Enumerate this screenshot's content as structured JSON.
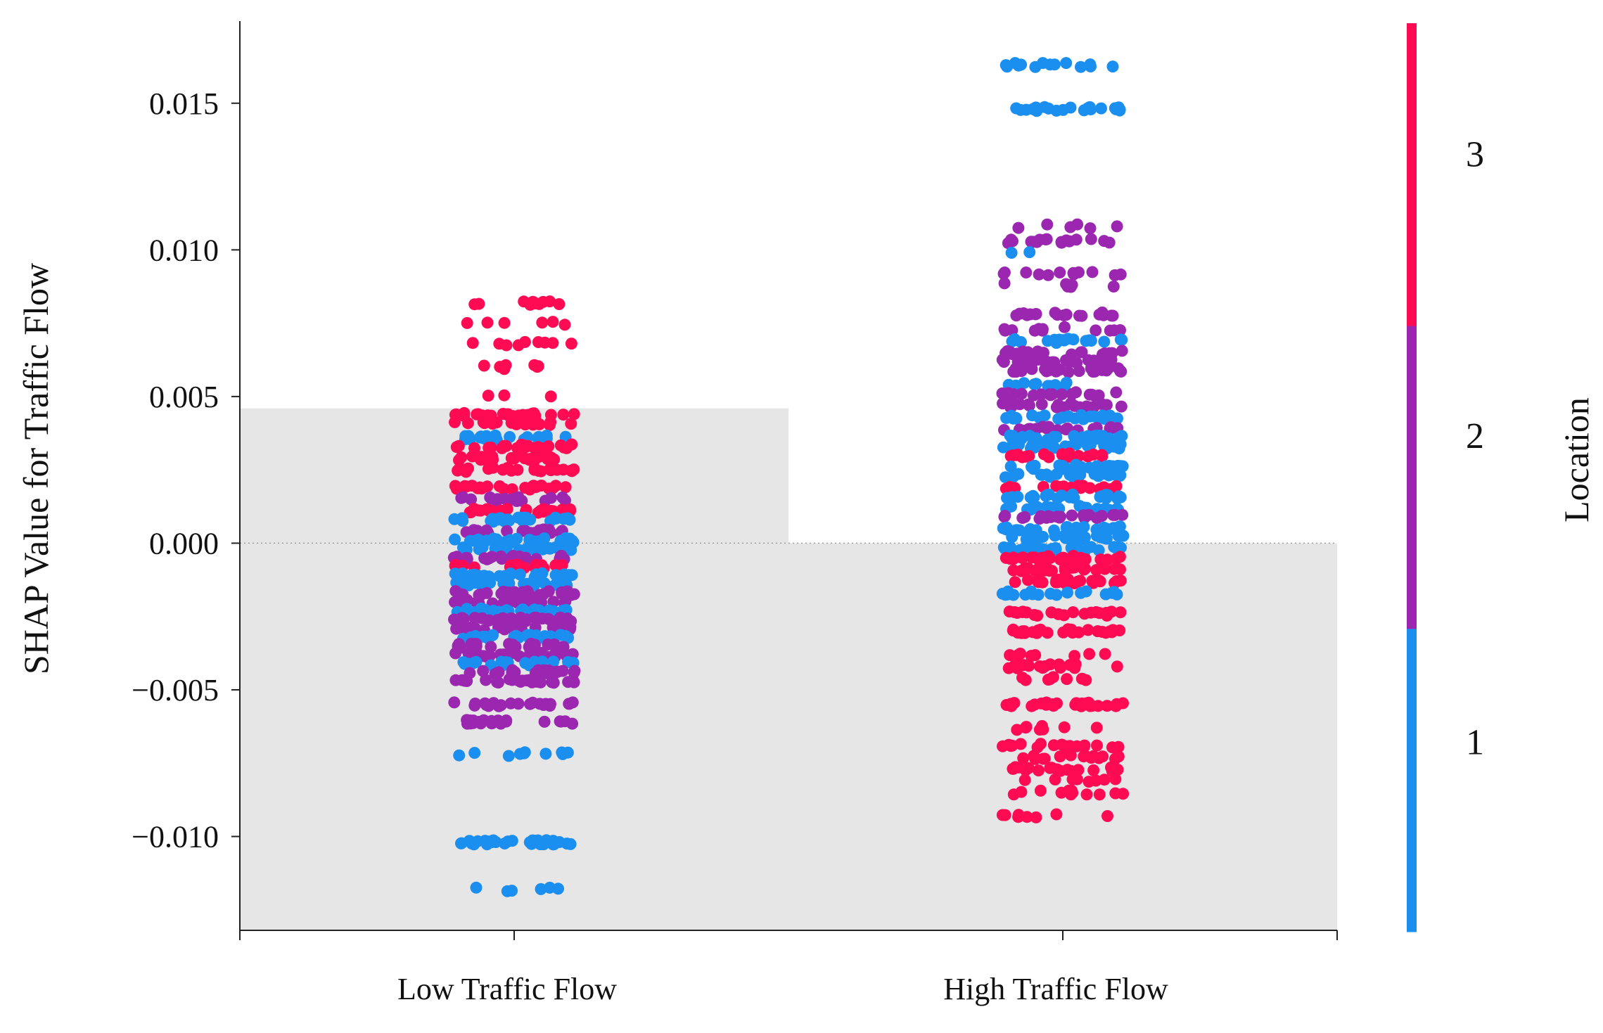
{
  "chart_data": {
    "type": "scatter",
    "subtype": "shap-dependence-strip",
    "title": "",
    "xlabel": "",
    "ylabel": "SHAP Value for Traffic Flow",
    "categories": [
      "Low Traffic Flow",
      "High Traffic Flow"
    ],
    "ylim": [
      -0.0132,
      0.0178
    ],
    "yticks": [
      0.015,
      0.01,
      0.005,
      0.0,
      -0.005,
      -0.01
    ],
    "ytick_labels": [
      "0.015",
      "0.010",
      "0.005",
      "0.000",
      "−0.005",
      "−0.010"
    ],
    "background_bars": [
      {
        "category": "Low Traffic Flow",
        "value": 0.0046
      },
      {
        "category": "High Traffic Flow",
        "value": 0.0
      }
    ],
    "zero_line": true,
    "grid": false,
    "colorbar": {
      "label": "Location",
      "tick_labels": [
        "3",
        "2",
        "1"
      ],
      "classes": [
        {
          "value": 3,
          "color": "#ff0b54"
        },
        {
          "value": 2,
          "color": "#9b27b0"
        },
        {
          "value": 1,
          "color": "#1b8ff0"
        }
      ]
    },
    "series": [
      {
        "category": "Low Traffic Flow",
        "bands": [
          {
            "y": 0.0082,
            "location": 3,
            "count": 10
          },
          {
            "y": 0.0075,
            "location": 3,
            "count": 6
          },
          {
            "y": 0.0068,
            "location": 3,
            "count": 9
          },
          {
            "y": 0.006,
            "location": 3,
            "count": 7
          },
          {
            "y": 0.005,
            "location": 3,
            "count": 3
          },
          {
            "y": 0.0044,
            "location": 3,
            "count": 22
          },
          {
            "y": 0.0041,
            "location": 3,
            "count": 20
          },
          {
            "y": 0.0036,
            "location": 1,
            "count": 22
          },
          {
            "y": 0.0033,
            "location": 3,
            "count": 24
          },
          {
            "y": 0.0029,
            "location": 3,
            "count": 26
          },
          {
            "y": 0.0025,
            "location": 3,
            "count": 22
          },
          {
            "y": 0.0019,
            "location": 3,
            "count": 24
          },
          {
            "y": 0.0015,
            "location": 2,
            "count": 18
          },
          {
            "y": 0.0011,
            "location": 3,
            "count": 26
          },
          {
            "y": 0.0008,
            "location": 1,
            "count": 26
          },
          {
            "y": 0.0004,
            "location": 2,
            "count": 22
          },
          {
            "y": 0.0001,
            "location": 1,
            "count": 30
          },
          {
            "y": -0.0002,
            "location": 1,
            "count": 28
          },
          {
            "y": -0.0005,
            "location": 2,
            "count": 26
          },
          {
            "y": -0.0008,
            "location": 3,
            "count": 20
          },
          {
            "y": -0.0011,
            "location": 1,
            "count": 26
          },
          {
            "y": -0.0014,
            "location": 1,
            "count": 26
          },
          {
            "y": -0.0017,
            "location": 2,
            "count": 28
          },
          {
            "y": -0.002,
            "location": 2,
            "count": 28
          },
          {
            "y": -0.0023,
            "location": 1,
            "count": 26
          },
          {
            "y": -0.0026,
            "location": 2,
            "count": 28
          },
          {
            "y": -0.0029,
            "location": 2,
            "count": 28
          },
          {
            "y": -0.0032,
            "location": 1,
            "count": 24
          },
          {
            "y": -0.0035,
            "location": 2,
            "count": 26
          },
          {
            "y": -0.0038,
            "location": 2,
            "count": 26
          },
          {
            "y": -0.0041,
            "location": 1,
            "count": 24
          },
          {
            "y": -0.0044,
            "location": 2,
            "count": 26
          },
          {
            "y": -0.0047,
            "location": 2,
            "count": 24
          },
          {
            "y": -0.0055,
            "location": 2,
            "count": 24
          },
          {
            "y": -0.0061,
            "location": 2,
            "count": 22
          },
          {
            "y": -0.0072,
            "location": 1,
            "count": 10
          },
          {
            "y": -0.0102,
            "location": 1,
            "count": 34
          },
          {
            "y": -0.0118,
            "location": 1,
            "count": 6
          }
        ]
      },
      {
        "category": "High Traffic Flow",
        "bands": [
          {
            "y": 0.0163,
            "location": 1,
            "count": 14
          },
          {
            "y": 0.0148,
            "location": 1,
            "count": 22
          },
          {
            "y": 0.0108,
            "location": 2,
            "count": 6
          },
          {
            "y": 0.0103,
            "location": 2,
            "count": 18
          },
          {
            "y": 0.0099,
            "location": 1,
            "count": 2
          },
          {
            "y": 0.0092,
            "location": 2,
            "count": 12
          },
          {
            "y": 0.0088,
            "location": 2,
            "count": 6
          },
          {
            "y": 0.0078,
            "location": 2,
            "count": 20
          },
          {
            "y": 0.0073,
            "location": 2,
            "count": 12
          },
          {
            "y": 0.0069,
            "location": 1,
            "count": 18
          },
          {
            "y": 0.0065,
            "location": 2,
            "count": 24
          },
          {
            "y": 0.0062,
            "location": 2,
            "count": 24
          },
          {
            "y": 0.0059,
            "location": 2,
            "count": 26
          },
          {
            "y": 0.0054,
            "location": 1,
            "count": 10
          },
          {
            "y": 0.0051,
            "location": 2,
            "count": 18
          },
          {
            "y": 0.0047,
            "location": 2,
            "count": 22
          },
          {
            "y": 0.0043,
            "location": 1,
            "count": 22
          },
          {
            "y": 0.0039,
            "location": 2,
            "count": 20
          },
          {
            "y": 0.0036,
            "location": 1,
            "count": 30
          },
          {
            "y": 0.0033,
            "location": 1,
            "count": 28
          },
          {
            "y": 0.003,
            "location": 3,
            "count": 20
          },
          {
            "y": 0.0026,
            "location": 1,
            "count": 26
          },
          {
            "y": 0.0023,
            "location": 1,
            "count": 24
          },
          {
            "y": 0.0019,
            "location": 3,
            "count": 22
          },
          {
            "y": 0.0016,
            "location": 1,
            "count": 24
          },
          {
            "y": 0.0012,
            "location": 1,
            "count": 22
          },
          {
            "y": 0.0009,
            "location": 2,
            "count": 22
          },
          {
            "y": 0.0005,
            "location": 1,
            "count": 28
          },
          {
            "y": 0.0002,
            "location": 1,
            "count": 30
          },
          {
            "y": -0.0002,
            "location": 1,
            "count": 28
          },
          {
            "y": -0.0005,
            "location": 3,
            "count": 26
          },
          {
            "y": -0.0009,
            "location": 3,
            "count": 28
          },
          {
            "y": -0.0013,
            "location": 3,
            "count": 26
          },
          {
            "y": -0.0017,
            "location": 1,
            "count": 22
          },
          {
            "y": -0.0024,
            "location": 3,
            "count": 20
          },
          {
            "y": -0.003,
            "location": 3,
            "count": 26
          },
          {
            "y": -0.0038,
            "location": 3,
            "count": 8
          },
          {
            "y": -0.0042,
            "location": 3,
            "count": 18
          },
          {
            "y": -0.0046,
            "location": 3,
            "count": 8
          },
          {
            "y": -0.0055,
            "location": 3,
            "count": 26
          },
          {
            "y": -0.0063,
            "location": 3,
            "count": 8
          },
          {
            "y": -0.0069,
            "location": 3,
            "count": 18
          },
          {
            "y": -0.0073,
            "location": 3,
            "count": 16
          },
          {
            "y": -0.0077,
            "location": 3,
            "count": 18
          },
          {
            "y": -0.0081,
            "location": 3,
            "count": 8
          },
          {
            "y": -0.0085,
            "location": 3,
            "count": 12
          },
          {
            "y": -0.0093,
            "location": 3,
            "count": 8
          }
        ]
      }
    ]
  }
}
